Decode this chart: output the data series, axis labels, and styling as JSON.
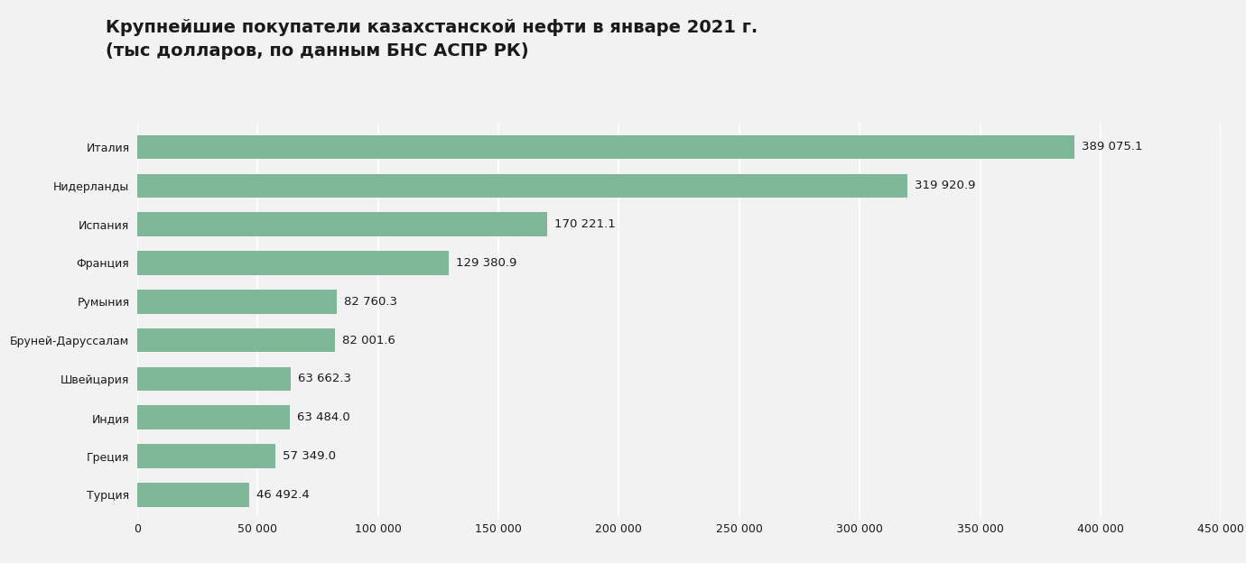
{
  "title_line1": "Крупнейшие покупатели казахстанской нефти в январе 2021 г.",
  "title_line2": "(тыс долларов, по данным БНС АСПР РК)",
  "categories": [
    "Италия",
    "Нидерланды",
    "Испания",
    "Франция",
    "Румыния",
    "Бруней-Даруссалам",
    "Швейцария",
    "Индия",
    "Греция",
    "Турция"
  ],
  "values": [
    389075.1,
    319920.9,
    170221.1,
    129380.9,
    82760.3,
    82001.6,
    63662.3,
    63484.0,
    57349.0,
    46492.4
  ],
  "labels": [
    "389 075.1",
    "319 920.9",
    "170 221.1",
    "129 380.9",
    "82 760.3",
    "82 001.6",
    "63 662.3",
    "63 484.0",
    "57 349.0",
    "46 492.4"
  ],
  "bar_color": "#7EB899",
  "bg_color": "#F2F2F2",
  "text_color": "#1a1a1a",
  "xlim": [
    0,
    450000
  ],
  "xticks": [
    0,
    50000,
    100000,
    150000,
    200000,
    250000,
    300000,
    350000,
    400000,
    450000
  ],
  "xtick_labels": [
    "0",
    "50 000",
    "100 000",
    "150 000",
    "200 000",
    "250 000",
    "300 000",
    "350 000",
    "400 000",
    "450 000"
  ],
  "title_fontsize": 14,
  "label_fontsize": 9.5,
  "tick_fontsize": 9,
  "bar_height": 0.62
}
